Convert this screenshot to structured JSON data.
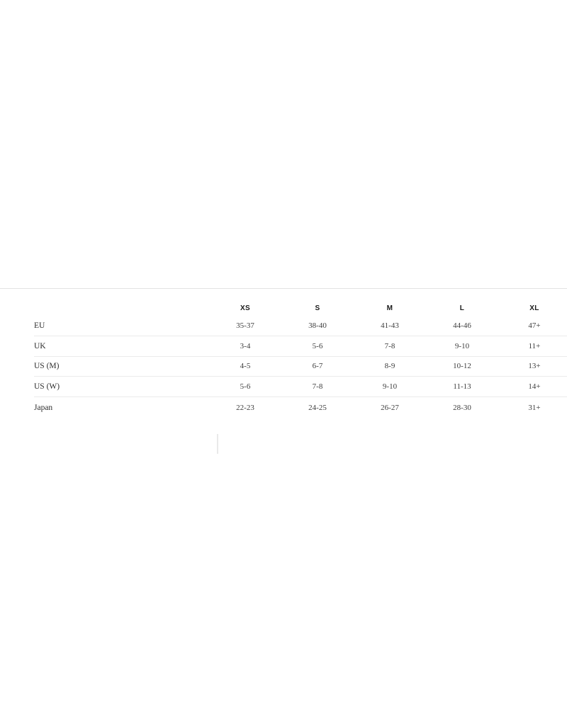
{
  "size_chart": {
    "columns": [
      "XS",
      "S",
      "M",
      "L",
      "XL"
    ],
    "rows": [
      {
        "label": "EU",
        "values": [
          "35-37",
          "38-40",
          "41-43",
          "44-46",
          "47+"
        ]
      },
      {
        "label": "UK",
        "values": [
          "3-4",
          "5-6",
          "7-8",
          "9-10",
          "11+"
        ]
      },
      {
        "label": "US (M)",
        "values": [
          "4-5",
          "6-7",
          "8-9",
          "10-12",
          "13+"
        ]
      },
      {
        "label": "US (W)",
        "values": [
          "5-6",
          "7-8",
          "9-10",
          "11-13",
          "14+"
        ]
      },
      {
        "label": "Japan",
        "values": [
          "22-23",
          "24-25",
          "26-27",
          "28-30",
          "31+"
        ]
      }
    ]
  },
  "colors": {
    "page_background": "#ffffff",
    "top_divider": "#e3e3e3",
    "row_divider": "#ebebeb",
    "header_text": "#1a1a1a",
    "body_text": "#3d3d3d"
  }
}
